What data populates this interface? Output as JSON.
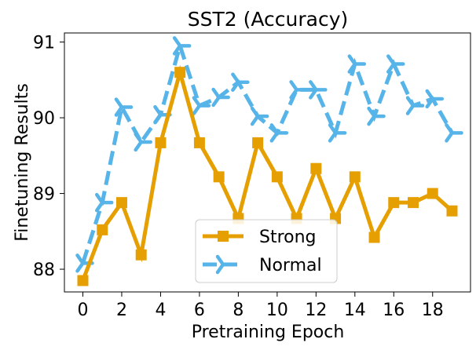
{
  "chart_data": {
    "type": "line",
    "title": "SST2 (Accuracy)",
    "xlabel": "Pretraining Epoch",
    "ylabel": "Finetuning Results",
    "x": [
      0,
      1,
      2,
      3,
      4,
      5,
      6,
      7,
      8,
      9,
      10,
      11,
      12,
      13,
      14,
      15,
      16,
      17,
      18,
      19
    ],
    "xlim": [
      -0.95,
      19.95
    ],
    "ylim": [
      87.7,
      91.12
    ],
    "xticks": [
      0,
      2,
      4,
      6,
      8,
      10,
      12,
      14,
      16,
      18
    ],
    "xtick_labels": [
      "0",
      "2",
      "4",
      "6",
      "8",
      "10",
      "12",
      "14",
      "16",
      "18"
    ],
    "yticks": [
      88,
      89,
      90,
      91
    ],
    "ytick_labels": [
      "88",
      "89",
      "90",
      "91"
    ],
    "grid": false,
    "legend_position": "bottom-center",
    "series": [
      {
        "name": "Strong",
        "color": "#E69F00",
        "style": "solid",
        "marker": "square",
        "values": [
          87.85,
          88.52,
          88.88,
          88.19,
          89.67,
          90.6,
          89.67,
          89.22,
          88.67,
          89.67,
          89.22,
          88.67,
          89.33,
          88.67,
          89.22,
          88.42,
          88.88,
          88.88,
          89.0,
          88.77
        ]
      },
      {
        "name": "Normal",
        "color": "#56B4E9",
        "style": "dashed",
        "marker": "tri_right",
        "values": [
          88.08,
          88.88,
          90.14,
          89.68,
          90.04,
          90.95,
          90.16,
          90.27,
          90.47,
          90.02,
          89.8,
          90.37,
          90.37,
          89.8,
          90.71,
          90.02,
          90.71,
          90.16,
          90.25,
          89.8
        ]
      }
    ]
  }
}
